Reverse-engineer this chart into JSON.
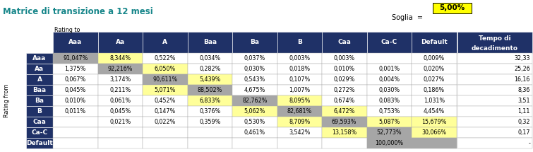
{
  "title": "Matrice di transizione a 12 mesi",
  "soglia_label": "Soglia  =",
  "soglia_value": "5,00%",
  "rating_to_label": "Rating to",
  "rating_from_label": "Rating from",
  "col_headers": [
    "Aaa",
    "Aa",
    "A",
    "Baa",
    "Ba",
    "B",
    "Caa",
    "Ca-C",
    "Default"
  ],
  "row_headers": [
    "Aaa",
    "Aa",
    "A",
    "Baa",
    "Ba",
    "B",
    "Caa",
    "Ca-C",
    "Default"
  ],
  "decay_header": [
    "Tempo di",
    "decadimento"
  ],
  "data": [
    [
      "91,047%",
      "8,344%",
      "0,522%",
      "0,034%",
      "0,037%",
      "0,003%",
      "0,003%",
      "",
      "0,009%",
      "32,33"
    ],
    [
      "1,375%",
      "92,216%",
      "6,050%",
      "0,282%",
      "0,030%",
      "0,018%",
      "0,010%",
      "0,001%",
      "0,020%",
      "25,26"
    ],
    [
      "0,067%",
      "3,174%",
      "90,611%",
      "5,439%",
      "0,543%",
      "0,107%",
      "0,029%",
      "0,004%",
      "0,027%",
      "16,16"
    ],
    [
      "0,045%",
      "0,211%",
      "5,071%",
      "88,502%",
      "4,675%",
      "1,007%",
      "0,272%",
      "0,030%",
      "0,186%",
      "8,36"
    ],
    [
      "0,010%",
      "0,061%",
      "0,452%",
      "6,833%",
      "82,762%",
      "8,095%",
      "0,674%",
      "0,083%",
      "1,031%",
      "3,51"
    ],
    [
      "0,011%",
      "0,045%",
      "0,147%",
      "0,376%",
      "5,062%",
      "82,681%",
      "6,472%",
      "0,753%",
      "4,454%",
      "1,11"
    ],
    [
      "",
      "0,021%",
      "0,022%",
      "0,359%",
      "0,530%",
      "8,709%",
      "69,593%",
      "5,087%",
      "15,679%",
      "0,32"
    ],
    [
      "",
      "",
      "",
      "",
      "0,461%",
      "3,542%",
      "13,158%",
      "52,773%",
      "30,066%",
      "0,17"
    ],
    [
      "",
      "",
      "",
      "",
      "",
      "",
      "",
      "100,000%",
      "",
      "-"
    ]
  ],
  "header_bg": "#1f3167",
  "header_fg": "#ffffff",
  "diagonal_bg": "#a6a6a6",
  "normal_bg": "#ffffff",
  "above_threshold_bg": "#ffff99",
  "decay_header_bg": "#1f3167",
  "decay_header_fg": "#ffffff",
  "decay_cell_bg": "#ffffff",
  "soglia_box_bg": "#ffff00",
  "title_color": "#17868a",
  "grid_color": "#aaaaaa",
  "title_fontsize": 8.5,
  "cell_fontsize": 5.8,
  "header_fontsize": 6.5,
  "small_label_fontsize": 5.8
}
